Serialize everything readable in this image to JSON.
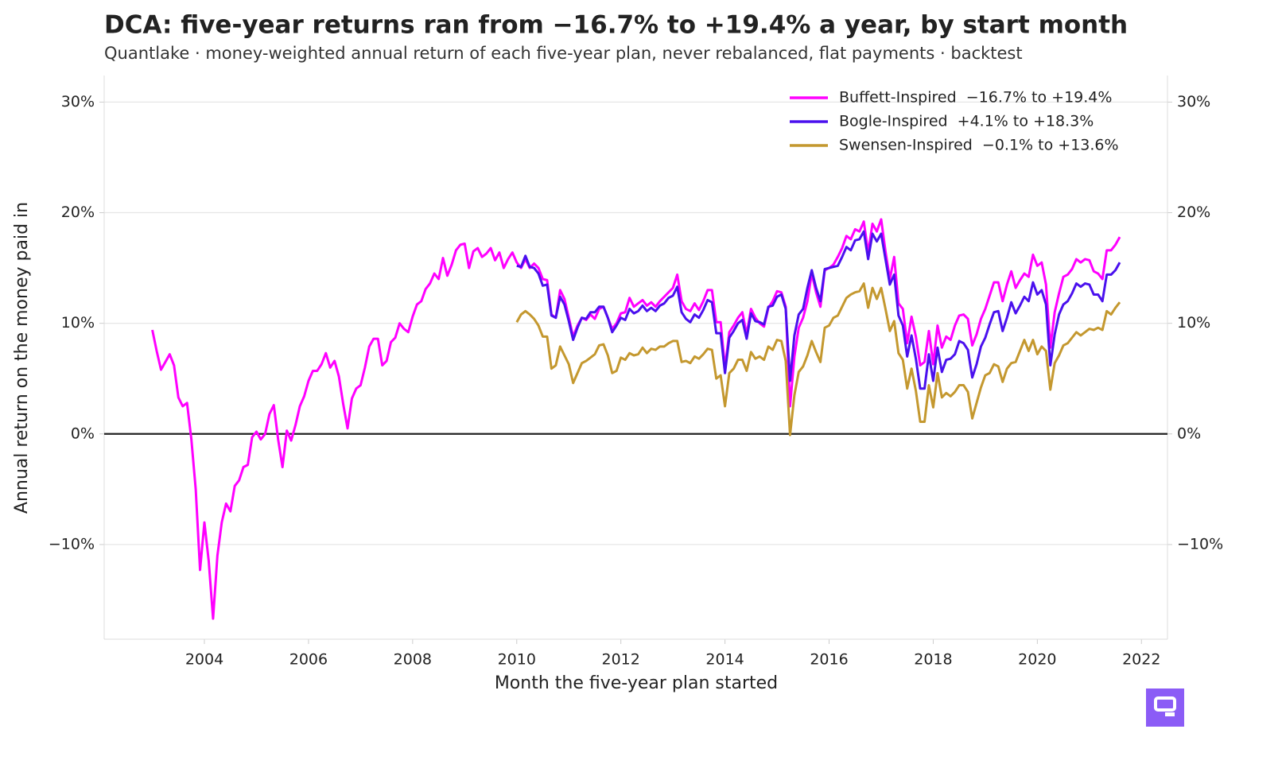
{
  "chart_data": {
    "type": "line",
    "title": "DCA: five-year returns ran from −16.7% to +19.4% a year, by start month",
    "subtitle": "Quantlake  ·  money-weighted annual return of each five-year plan, never rebalanced, flat payments  ·  backtest",
    "xlabel": "Month the five-year plan started",
    "ylabel": "Annual return on the money paid in",
    "x": [
      "2003-01",
      "2003-02",
      "2003-03",
      "2003-04",
      "2003-05",
      "2003-06",
      "2003-07",
      "2003-08",
      "2003-09",
      "2003-10",
      "2003-11",
      "2003-12",
      "2004-01",
      "2004-02",
      "2004-03",
      "2004-04",
      "2004-05",
      "2004-06",
      "2004-07",
      "2004-08",
      "2004-09",
      "2004-10",
      "2004-11",
      "2004-12",
      "2005-01",
      "2005-02",
      "2005-03",
      "2005-04",
      "2005-05",
      "2005-06",
      "2005-07",
      "2005-08",
      "2005-09",
      "2005-10",
      "2005-11",
      "2005-12",
      "2006-01",
      "2006-02",
      "2006-03",
      "2006-04",
      "2006-05",
      "2006-06",
      "2006-07",
      "2006-08",
      "2006-09",
      "2006-10",
      "2006-11",
      "2006-12",
      "2007-01",
      "2007-02",
      "2007-03",
      "2007-04",
      "2007-05",
      "2007-06",
      "2007-07",
      "2007-08",
      "2007-09",
      "2007-10",
      "2007-11",
      "2007-12",
      "2008-01",
      "2008-02",
      "2008-03",
      "2008-04",
      "2008-05",
      "2008-06",
      "2008-07",
      "2008-08",
      "2008-09",
      "2008-10",
      "2008-11",
      "2008-12",
      "2009-01",
      "2009-02",
      "2009-03",
      "2009-04",
      "2009-05",
      "2009-06",
      "2009-07",
      "2009-08",
      "2009-09",
      "2009-10",
      "2009-11",
      "2009-12",
      "2010-01",
      "2010-02",
      "2010-03",
      "2010-04",
      "2010-05",
      "2010-06",
      "2010-07",
      "2010-08",
      "2010-09",
      "2010-10",
      "2010-11",
      "2010-12",
      "2011-01",
      "2011-02",
      "2011-03",
      "2011-04",
      "2011-05",
      "2011-06",
      "2011-07",
      "2011-08",
      "2011-09",
      "2011-10",
      "2011-11",
      "2011-12",
      "2012-01",
      "2012-02",
      "2012-03",
      "2012-04",
      "2012-05",
      "2012-06",
      "2012-07",
      "2012-08",
      "2012-09",
      "2012-10",
      "2012-11",
      "2012-12",
      "2013-01",
      "2013-02",
      "2013-03",
      "2013-04",
      "2013-05",
      "2013-06",
      "2013-07",
      "2013-08",
      "2013-09",
      "2013-10",
      "2013-11",
      "2013-12",
      "2014-01",
      "2014-02",
      "2014-03",
      "2014-04",
      "2014-05",
      "2014-06",
      "2014-07",
      "2014-08",
      "2014-09",
      "2014-10",
      "2014-11",
      "2014-12",
      "2015-01",
      "2015-02",
      "2015-03",
      "2015-04",
      "2015-05",
      "2015-06",
      "2015-07",
      "2015-08",
      "2015-09",
      "2015-10",
      "2015-11",
      "2015-12",
      "2016-01",
      "2016-02",
      "2016-03",
      "2016-04",
      "2016-05",
      "2016-06",
      "2016-07",
      "2016-08",
      "2016-09",
      "2016-10",
      "2016-11",
      "2016-12",
      "2017-01",
      "2017-02",
      "2017-03",
      "2017-04",
      "2017-05",
      "2017-06",
      "2017-07",
      "2017-08",
      "2017-09",
      "2017-10",
      "2017-11",
      "2017-12",
      "2018-01",
      "2018-02",
      "2018-03",
      "2018-04",
      "2018-05",
      "2018-06",
      "2018-07",
      "2018-08",
      "2018-09",
      "2018-10",
      "2018-11",
      "2018-12",
      "2019-01",
      "2019-02",
      "2019-03",
      "2019-04",
      "2019-05",
      "2019-06",
      "2019-07",
      "2019-08",
      "2019-09",
      "2019-10",
      "2019-11",
      "2019-12",
      "2020-01",
      "2020-02",
      "2020-03",
      "2020-04",
      "2020-05",
      "2020-06",
      "2020-07",
      "2020-08",
      "2020-09",
      "2020-10",
      "2020-11",
      "2020-12",
      "2021-01",
      "2021-02",
      "2021-03",
      "2021-04",
      "2021-05",
      "2021-06",
      "2021-07",
      "2021-08"
    ],
    "series": [
      {
        "name": "Buffett-Inspired  −16.7% to +19.4%",
        "color": "#ff00ff",
        "values": [
          9.4,
          7.5,
          5.8,
          6.5,
          7.2,
          6.2,
          3.3,
          2.5,
          2.8,
          -0.5,
          -5,
          -12.3,
          -8,
          -11.5,
          -16.7,
          -11,
          -8,
          -6.3,
          -7,
          -4.7,
          -4.2,
          -3,
          -2.8,
          -0.3,
          0.2,
          -0.5,
          0,
          1.8,
          2.6,
          -0.5,
          -3,
          0.3,
          -0.6,
          0.8,
          2.5,
          3.4,
          4.8,
          5.7,
          5.7,
          6.3,
          7.3,
          6,
          6.6,
          5.2,
          2.7,
          0.5,
          3.2,
          4.1,
          4.4,
          6,
          7.9,
          8.6,
          8.6,
          6.2,
          6.6,
          8.3,
          8.7,
          10,
          9.5,
          9.2,
          10.6,
          11.7,
          12,
          13.1,
          13.6,
          14.5,
          14,
          15.9,
          14.3,
          15.3,
          16.6,
          17.1,
          17.2,
          15,
          16.5,
          16.8,
          16,
          16.3,
          16.8,
          15.7,
          16.4,
          15,
          15.8,
          16.4,
          15.5,
          15,
          15.8,
          15,
          15.4,
          15,
          14,
          13.9,
          10.8,
          10.5,
          13,
          12.2,
          10.5,
          8.8,
          9.8,
          10.5,
          10.3,
          10.8,
          10.4,
          11.3,
          11.5,
          10.5,
          9.5,
          10,
          10.9,
          11,
          12.3,
          11.5,
          11.8,
          12.1,
          11.6,
          11.9,
          11.5,
          12,
          12.4,
          12.8,
          13.2,
          14.4,
          12,
          11.3,
          11.1,
          11.8,
          11.2,
          12,
          13,
          13,
          10.1,
          10.1,
          6,
          9.2,
          9.8,
          10.5,
          11,
          9,
          11.3,
          10.5,
          10,
          9.7,
          11.4,
          12,
          12.9,
          12.8,
          11.5,
          2.5,
          7,
          9.6,
          10.5,
          12,
          14.5,
          12.8,
          11.5,
          14.8,
          15,
          15.3,
          16,
          16.8,
          17.9,
          17.6,
          18.5,
          18.3,
          19.2,
          16.4,
          19,
          18.3,
          19.4,
          16.5,
          14,
          16,
          11.8,
          11.3,
          8.2,
          10.6,
          8.8,
          6.2,
          6.5,
          9.3,
          6.3,
          9.8,
          7.8,
          8.8,
          8.5,
          9.8,
          10.7,
          10.8,
          10.4,
          8,
          9,
          10.4,
          11.3,
          12.5,
          13.7,
          13.7,
          12,
          13.5,
          14.7,
          13.2,
          13.9,
          14.5,
          14.2,
          16.2,
          15.2,
          15.5,
          13.5,
          7.8,
          11,
          12.7,
          14.2,
          14.4,
          14.9,
          15.8,
          15.5,
          15.8,
          15.7,
          14.7,
          14.5,
          14,
          16.6,
          16.6,
          17.1,
          17.8
        ]
      },
      {
        "name": "Bogle-Inspired  +4.1% to +18.3%",
        "color": "#4a10ee",
        "values": [
          null,
          null,
          null,
          null,
          null,
          null,
          null,
          null,
          null,
          null,
          null,
          null,
          null,
          null,
          null,
          null,
          null,
          null,
          null,
          null,
          null,
          null,
          null,
          null,
          null,
          null,
          null,
          null,
          null,
          null,
          null,
          null,
          null,
          null,
          null,
          null,
          null,
          null,
          null,
          null,
          null,
          null,
          null,
          null,
          null,
          null,
          null,
          null,
          null,
          null,
          null,
          null,
          null,
          null,
          null,
          null,
          null,
          null,
          null,
          null,
          null,
          null,
          null,
          null,
          null,
          null,
          null,
          null,
          null,
          null,
          null,
          null,
          null,
          null,
          null,
          null,
          null,
          null,
          null,
          null,
          null,
          null,
          null,
          null,
          15.2,
          15.1,
          16.1,
          15.1,
          15,
          14.5,
          13.4,
          13.5,
          10.7,
          10.5,
          12.4,
          11.7,
          10.2,
          8.5,
          9.6,
          10.5,
          10.4,
          11,
          11,
          11.5,
          11.5,
          10.5,
          9.2,
          9.8,
          10.5,
          10.3,
          11.3,
          10.9,
          11.1,
          11.6,
          11.1,
          11.4,
          11.1,
          11.6,
          11.8,
          12.3,
          12.5,
          13.3,
          11,
          10.4,
          10.1,
          10.8,
          10.5,
          11.2,
          12.1,
          11.9,
          9.1,
          9.1,
          5.5,
          8.7,
          9.3,
          10,
          10.3,
          8.6,
          10.9,
          10.2,
          10.1,
          9.9,
          11.5,
          11.6,
          12.4,
          12.6,
          11.3,
          4.8,
          8.9,
          10.8,
          11.3,
          13.2,
          14.8,
          13.2,
          12,
          14.9,
          15,
          15.1,
          15.2,
          16,
          16.9,
          16.6,
          17.5,
          17.6,
          18.3,
          15.8,
          18.1,
          17.4,
          18.1,
          15.8,
          13.5,
          14.4,
          10.7,
          9.8,
          7,
          8.9,
          6.8,
          4.1,
          4.1,
          7.2,
          4.8,
          7.8,
          5.6,
          6.7,
          6.8,
          7.2,
          8.4,
          8.2,
          7.6,
          5.1,
          6.3,
          7.9,
          8.7,
          9.9,
          11,
          11.1,
          9.3,
          10.5,
          11.9,
          10.9,
          11.6,
          12.4,
          12,
          13.7,
          12.6,
          13,
          11.7,
          6.2,
          9,
          10.8,
          11.7,
          12,
          12.7,
          13.6,
          13.3,
          13.6,
          13.5,
          12.6,
          12.6,
          12,
          14.4,
          14.4,
          14.8,
          15.5
        ]
      },
      {
        "name": "Swensen-Inspired  −0.1% to +13.6%",
        "color": "#c4982f",
        "values": [
          null,
          null,
          null,
          null,
          null,
          null,
          null,
          null,
          null,
          null,
          null,
          null,
          null,
          null,
          null,
          null,
          null,
          null,
          null,
          null,
          null,
          null,
          null,
          null,
          null,
          null,
          null,
          null,
          null,
          null,
          null,
          null,
          null,
          null,
          null,
          null,
          null,
          null,
          null,
          null,
          null,
          null,
          null,
          null,
          null,
          null,
          null,
          null,
          null,
          null,
          null,
          null,
          null,
          null,
          null,
          null,
          null,
          null,
          null,
          null,
          null,
          null,
          null,
          null,
          null,
          null,
          null,
          null,
          null,
          null,
          null,
          null,
          null,
          null,
          null,
          null,
          null,
          null,
          null,
          null,
          null,
          null,
          null,
          null,
          10.1,
          10.8,
          11.1,
          10.8,
          10.4,
          9.8,
          8.8,
          8.8,
          5.9,
          6.2,
          7.9,
          7.1,
          6.3,
          4.6,
          5.5,
          6.4,
          6.6,
          6.9,
          7.2,
          8,
          8.1,
          7.1,
          5.5,
          5.7,
          6.9,
          6.7,
          7.3,
          7.1,
          7.2,
          7.8,
          7.3,
          7.7,
          7.6,
          7.9,
          7.9,
          8.2,
          8.4,
          8.4,
          6.5,
          6.6,
          6.4,
          7,
          6.8,
          7.2,
          7.7,
          7.6,
          5,
          5.3,
          2.5,
          5.5,
          5.9,
          6.7,
          6.7,
          5.7,
          7.4,
          6.8,
          7,
          6.7,
          7.9,
          7.6,
          8.5,
          8.4,
          6.6,
          -0.1,
          3.5,
          5.6,
          6.1,
          7.1,
          8.4,
          7.4,
          6.5,
          9.6,
          9.8,
          10.5,
          10.7,
          11.5,
          12.3,
          12.6,
          12.8,
          12.9,
          13.6,
          11.4,
          13.2,
          12.2,
          13.2,
          11.3,
          9.3,
          10.2,
          7.3,
          6.7,
          4.1,
          5.9,
          3.9,
          1.1,
          1.1,
          4.4,
          2.4,
          5.5,
          3.3,
          3.7,
          3.4,
          3.8,
          4.4,
          4.4,
          3.8,
          1.4,
          2.8,
          4.2,
          5.3,
          5.5,
          6.3,
          6.1,
          4.7,
          5.9,
          6.4,
          6.5,
          7.5,
          8.5,
          7.5,
          8.5,
          7.2,
          7.9,
          7.5,
          4,
          6.4,
          7.1,
          8,
          8.2,
          8.7,
          9.2,
          8.9,
          9.2,
          9.5,
          9.4,
          9.6,
          9.4,
          11.1,
          10.8,
          11.4,
          11.9
        ]
      }
    ],
    "xlim": [
      2002.075,
      2022.5
    ],
    "xticks": [
      2004,
      2006,
      2008,
      2010,
      2012,
      2014,
      2016,
      2018,
      2020,
      2022
    ],
    "ylim": [
      -18.56,
      32.4
    ],
    "yticks": [
      {
        "value": -10,
        "label": "−10%"
      },
      {
        "value": 0,
        "label": "0%"
      },
      {
        "value": 10,
        "label": "10%"
      },
      {
        "value": 20,
        "label": "20%"
      },
      {
        "value": 30,
        "label": "30%"
      }
    ],
    "grid": true,
    "zero_line": true,
    "right_axis": true,
    "legend": "upper right"
  }
}
